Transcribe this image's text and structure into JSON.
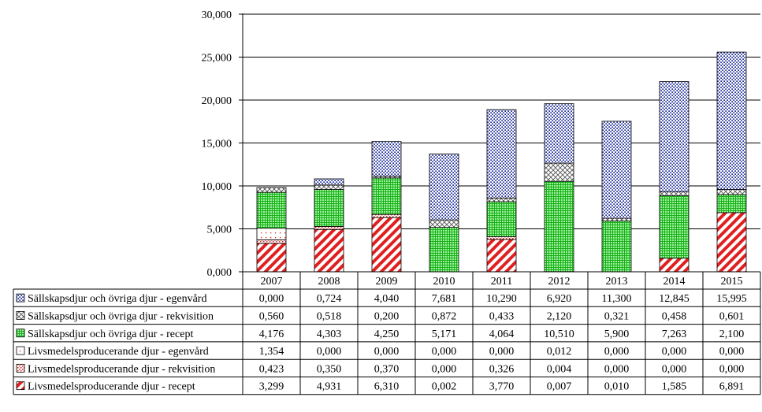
{
  "chart_data": {
    "type": "bar",
    "stacked": true,
    "categories": [
      "2007",
      "2008",
      "2009",
      "2010",
      "2011",
      "2012",
      "2013",
      "2014",
      "2015"
    ],
    "yticks": [
      "0,000",
      "5,000",
      "10,000",
      "15,000",
      "20,000",
      "25,000",
      "30,000"
    ],
    "ylim": [
      0,
      30
    ],
    "grid": true,
    "legend_placement": "data-table-left",
    "series": [
      {
        "name": "Livsmedelsproducerande djur - recept",
        "pattern": "red-diagonal",
        "color": "#e02020",
        "values": [
          3.299,
          4.931,
          6.31,
          0.002,
          3.77,
          0.007,
          0.01,
          1.585,
          6.891
        ],
        "labels": [
          "3,299",
          "4,931",
          "6,310",
          "0,002",
          "3,770",
          "0,007",
          "0,010",
          "1,585",
          "6,891"
        ]
      },
      {
        "name": "Livsmedelsproducerande djur - rekvisition",
        "pattern": "red-dots",
        "color": "#e02020",
        "values": [
          0.423,
          0.35,
          0.37,
          0.0,
          0.326,
          0.004,
          0.0,
          0.0,
          0.0
        ],
        "labels": [
          "0,423",
          "0,350",
          "0,370",
          "0,000",
          "0,326",
          "0,004",
          "0,000",
          "0,000",
          "0,000"
        ]
      },
      {
        "name": "Livsmedelsproducerande djur - egenvård",
        "pattern": "red-sparse",
        "color": "#e02020",
        "values": [
          1.354,
          0.0,
          0.0,
          0.0,
          0.0,
          0.012,
          0.0,
          0.0,
          0.0
        ],
        "labels": [
          "1,354",
          "0,000",
          "0,000",
          "0,000",
          "0,000",
          "0,012",
          "0,000",
          "0,000",
          "0,000"
        ]
      },
      {
        "name": "Sällskapsdjur och övriga djur - recept",
        "pattern": "green-grid",
        "color": "#18b018",
        "values": [
          4.176,
          4.303,
          4.25,
          5.171,
          4.064,
          10.51,
          5.9,
          7.263,
          2.1
        ],
        "labels": [
          "4,176",
          "4,303",
          "4,250",
          "5,171",
          "4,064",
          "10,510",
          "5,900",
          "7,263",
          "2,100"
        ]
      },
      {
        "name": "Sällskapsdjur och övriga djur - rekvisition",
        "pattern": "gray-cross",
        "color": "#555555",
        "values": [
          0.56,
          0.518,
          0.2,
          0.872,
          0.433,
          2.12,
          0.321,
          0.458,
          0.601
        ],
        "labels": [
          "0,560",
          "0,518",
          "0,200",
          "0,872",
          "0,433",
          "2,120",
          "0,321",
          "0,458",
          "0,601"
        ]
      },
      {
        "name": "Sällskapsdjur och övriga djur - egenvård",
        "pattern": "blue-dots",
        "color": "#1a2a9a",
        "values": [
          0.0,
          0.724,
          4.04,
          7.681,
          10.29,
          6.92,
          11.3,
          12.845,
          15.995
        ],
        "labels": [
          "0,000",
          "0,724",
          "4,040",
          "7,681",
          "10,290",
          "6,920",
          "11,300",
          "12,845",
          "15,995"
        ]
      }
    ]
  }
}
